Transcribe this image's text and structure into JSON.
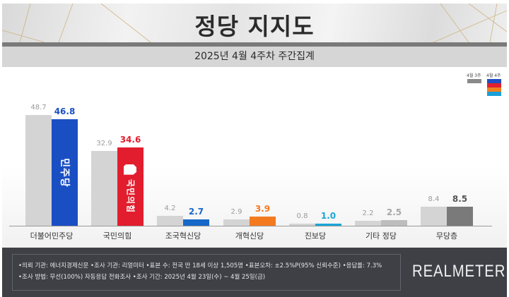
{
  "header": {
    "title": "정당 지지도",
    "subtitle": "2025년 4월 4주차 주간집계"
  },
  "legend": {
    "prev_label": "4월 3주",
    "cur_label": "4월 4주",
    "prev_color": "#8a8a8a",
    "cur_colors": [
      "#1e4fc2",
      "#e02030",
      "#f08020",
      "#1aa0d8"
    ]
  },
  "chart_data": {
    "type": "bar",
    "title": "정당 지지도",
    "subtitle": "2025년 4월 4주차 주간집계",
    "xlabel": "",
    "ylabel": "",
    "grid": false,
    "legend_position": "top-right",
    "categories": [
      "더불어민주당",
      "국민의힘",
      "조국혁신당",
      "개혁신당",
      "진보당",
      "기타 정당",
      "무당층"
    ],
    "series": [
      {
        "name": "4월 3주",
        "values": [
          48.7,
          32.9,
          4.2,
          2.9,
          0.8,
          2.2,
          8.4
        ],
        "color": "#d4d4d4"
      },
      {
        "name": "4월 4주",
        "values": [
          46.8,
          34.6,
          2.7,
          3.9,
          1.0,
          2.5,
          8.5
        ],
        "colors": [
          "#1a4fc4",
          "#e21d2e",
          "#1668c8",
          "#f47a20",
          "#1aa6d6",
          "#bdbdbd",
          "#7a7a7a"
        ]
      }
    ],
    "ylim": [
      0,
      50
    ]
  },
  "bars": [
    {
      "label": "더불어민주당",
      "prev": "48.7",
      "cur": "46.8",
      "cur_color": "#1a4fc4",
      "val_color": "#1a4fc4",
      "logo": "민주당"
    },
    {
      "label": "국민의힘",
      "prev": "32.9",
      "cur": "34.6",
      "cur_color": "#e21d2e",
      "val_color": "#e21d2e",
      "logo": "국민의힘"
    },
    {
      "label": "조국혁신당",
      "prev": "4.2",
      "cur": "2.7",
      "cur_color": "#1668c8",
      "val_color": "#1668c8"
    },
    {
      "label": "개혁신당",
      "prev": "2.9",
      "cur": "3.9",
      "cur_color": "#f47a20",
      "val_color": "#f47a20"
    },
    {
      "label": "진보당",
      "prev": "0.8",
      "cur": "1.0",
      "cur_color": "#1aa6d6",
      "val_color": "#1aa6d6"
    },
    {
      "label": "기타 정당",
      "prev": "2.2",
      "cur": "2.5",
      "cur_color": "#bdbdbd",
      "val_color": "#a8a8a8"
    },
    {
      "label": "무당층",
      "prev": "8.4",
      "cur": "8.5",
      "cur_color": "#7a7a7a",
      "val_color": "#555555"
    }
  ],
  "footer": {
    "line1": "•의뢰 기관: 에너지경제신문  •조사 기관: 리얼미터 •표본 수: 전국 만 18세 이상 1,505명 •표본오차: ±2.5%P(95% 신뢰수준) •응답률: 7.3%",
    "line2": "•조사 방법: 무선(100%) 자동응답 전화조사 •조사 기간: 2025년 4월 23일(수) ~ 4월 25일(금)",
    "brand": "REALMETER"
  }
}
